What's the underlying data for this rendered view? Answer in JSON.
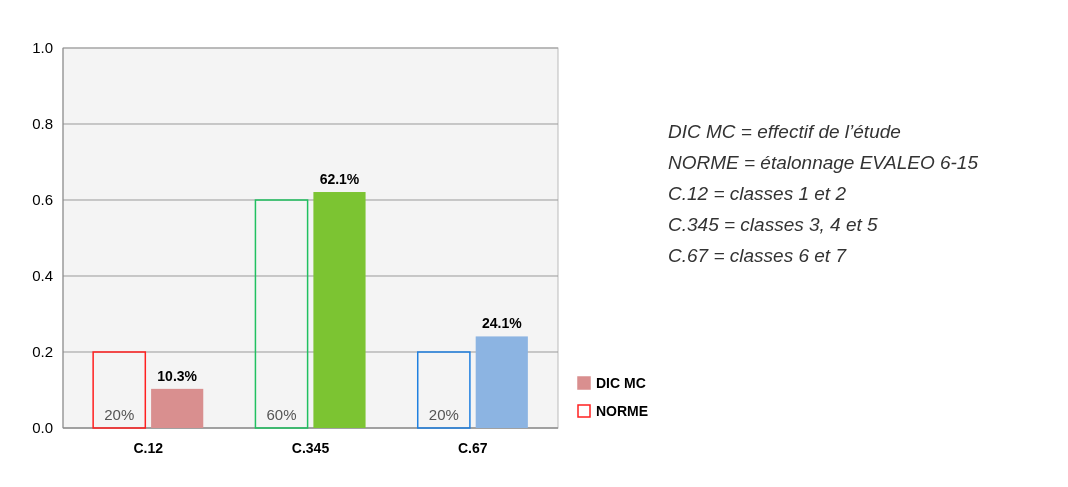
{
  "chart_data": {
    "type": "bar",
    "categories": [
      "C.12",
      "C.345",
      "C.67"
    ],
    "series": [
      {
        "name": "NORME",
        "colors": [
          "#ff2020",
          "#20c060",
          "#2080e0"
        ],
        "values": [
          0.2,
          0.6,
          0.2
        ],
        "value_labels": [
          "20%",
          "60%",
          "20%"
        ]
      },
      {
        "name": "DIC MC",
        "colors": [
          "#d98f8f",
          "#7cc432",
          "#8cb4e2"
        ],
        "values": [
          0.103,
          0.621,
          0.241
        ],
        "value_labels": [
          "10.3%",
          "62.1%",
          "24.1%"
        ]
      }
    ],
    "ylim": [
      0,
      1
    ],
    "yticks": [
      {
        "value": 0,
        "label": "0.0"
      },
      {
        "value": 0.2,
        "label": "0.2"
      },
      {
        "value": 0.4,
        "label": "0.4"
      },
      {
        "value": 0.6,
        "label": "0.6"
      },
      {
        "value": 0.8,
        "label": "0.8"
      },
      {
        "value": 1,
        "label": "1.0"
      }
    ],
    "grid": "y",
    "legend": "bottom right",
    "annotations": [
      "DIC MC = effectif de l’étude",
      "NORME = étalonnage EVALEO 6-15",
      "C.12 = classes 1 et 2",
      "C.345 = classes 3, 4 et 5",
      "C.67 = classes 6 et 7"
    ]
  }
}
